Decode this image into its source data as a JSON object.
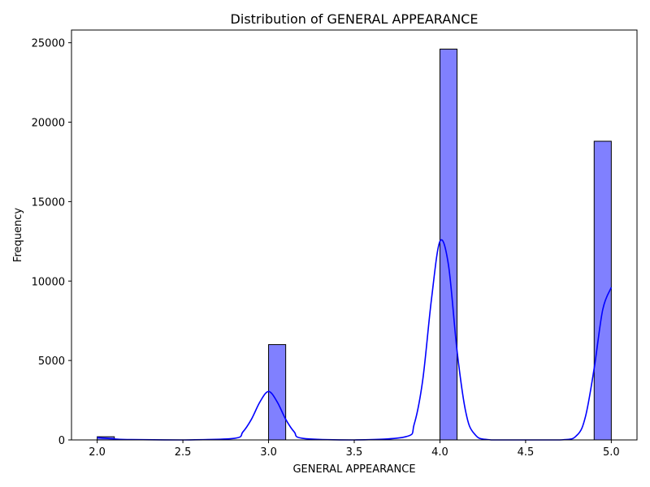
{
  "chart_data": {
    "type": "bar",
    "title": "Distribution of GENERAL APPEARANCE",
    "xlabel": "GENERAL APPEARANCE",
    "ylabel": "Frequency",
    "xlim": [
      1.85,
      5.15
    ],
    "ylim": [
      0,
      25800
    ],
    "xticks": [
      2.0,
      2.5,
      3.0,
      3.5,
      4.0,
      4.5,
      5.0
    ],
    "xtick_labels": [
      "2.0",
      "2.5",
      "3.0",
      "3.5",
      "4.0",
      "4.5",
      "5.0"
    ],
    "yticks": [
      0,
      5000,
      10000,
      15000,
      20000,
      25000
    ],
    "ytick_labels": [
      "0",
      "5000",
      "10000",
      "15000",
      "20000",
      "25000"
    ],
    "grid": false,
    "bar_color": "#8080ff",
    "bar_edge_color": "#000000",
    "kde_color": "#0000ff",
    "bins": [
      {
        "x0": 2.0,
        "x1": 2.1,
        "count": 200
      },
      {
        "x0": 3.0,
        "x1": 3.1,
        "count": 6000
      },
      {
        "x0": 4.0,
        "x1": 4.1,
        "count": 24600
      },
      {
        "x0": 4.9,
        "x1": 5.0,
        "count": 18800
      }
    ],
    "kde": [
      [
        2.0,
        150
      ],
      [
        2.1,
        60
      ],
      [
        2.2,
        20
      ],
      [
        2.5,
        0
      ],
      [
        2.8,
        100
      ],
      [
        2.85,
        500
      ],
      [
        2.9,
        1300
      ],
      [
        2.95,
        2400
      ],
      [
        3.0,
        3050
      ],
      [
        3.05,
        2400
      ],
      [
        3.1,
        1300
      ],
      [
        3.15,
        500
      ],
      [
        3.2,
        100
      ],
      [
        3.5,
        0
      ],
      [
        3.8,
        200
      ],
      [
        3.85,
        1000
      ],
      [
        3.9,
        3800
      ],
      [
        3.95,
        8800
      ],
      [
        4.0,
        12500
      ],
      [
        4.05,
        11000
      ],
      [
        4.1,
        5600
      ],
      [
        4.15,
        1800
      ],
      [
        4.2,
        400
      ],
      [
        4.3,
        0
      ],
      [
        4.7,
        0
      ],
      [
        4.8,
        300
      ],
      [
        4.85,
        1500
      ],
      [
        4.9,
        4500
      ],
      [
        4.95,
        8200
      ],
      [
        5.0,
        9600
      ]
    ]
  }
}
